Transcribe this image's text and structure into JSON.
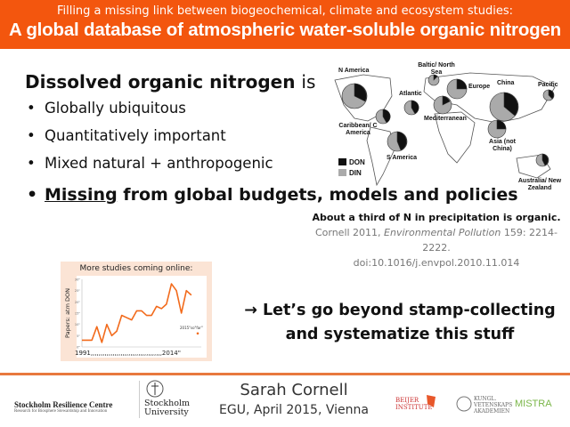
{
  "header": {
    "subtitle": "Filling a missing link between biogeochemical, climate and ecosystem studies:",
    "title": "A global database of atmospheric water-soluble organic nitrogen",
    "color": "#f3560e"
  },
  "main": {
    "heading": "Dissolved organic nitrogen",
    "heading_suffix": "is",
    "bullets": [
      "Globally ubiquitous",
      "Quantitatively important",
      "Mixed natural + anthropogenic"
    ],
    "bullet_emph_underlined": "Missing",
    "bullet_emph_rest": " from global budgets, models and policies"
  },
  "map": {
    "regions": [
      "N America",
      "Baltic/ North Sea",
      "Europe",
      "China",
      "Pacific",
      "Atlantic",
      "Mediterranean",
      "Caribbean/ C America",
      "S America",
      "Asia (not China)",
      "Australia/ New Zealand"
    ],
    "legend": [
      "DON",
      "DIN"
    ]
  },
  "caption": {
    "bold": "About a third of N in precipitation is organic.",
    "citation_author": "Cornell 2011, ",
    "citation_journal": "Environmental Pollution",
    "citation_rest": " 159: 2214-2222.",
    "doi": "doi:10.1016/j.envpol.2010.11.014"
  },
  "chart_data": {
    "type": "line",
    "title": "More studies coming online:",
    "ylabel": "Papers: atm DON",
    "x_start_label": "1991,,,,,,,,,,,,,,,,,,,,,,,,,,,,,,,,,,,,2014\"",
    "annotation": "2015\"so\"far\"",
    "ylim": [
      0,
      30
    ],
    "yticks": [
      0,
      5,
      10,
      15,
      20,
      25,
      30
    ],
    "x": [
      1991,
      1992,
      1993,
      1994,
      1995,
      1996,
      1997,
      1998,
      1999,
      2000,
      2001,
      2002,
      2003,
      2004,
      2005,
      2006,
      2007,
      2008,
      2009,
      2010,
      2011,
      2012,
      2013,
      2014
    ],
    "values": [
      3,
      3,
      3,
      9,
      2,
      10,
      5,
      7,
      14,
      13,
      12,
      16,
      16,
      14,
      14,
      18,
      17,
      19,
      28,
      25,
      15,
      25,
      23,
      null
    ],
    "extra_point": {
      "x": 2015,
      "y": 6
    },
    "color": "#f26a1b"
  },
  "callout": {
    "line1": "→ Let’s go beyond stamp-collecting",
    "line2": "and systematize this stuff"
  },
  "footer": {
    "src_name": "Stockholm Resilience Centre",
    "src_tagline": "Research for Biosphere Stewardship and Innovation",
    "su_name1": "Stockholm",
    "su_name2": "University",
    "author": "Sarah Cornell",
    "event": "EGU, April 2015, Vienna",
    "partner1": "BEIJER INSTITUTE",
    "partner2": "KUNGL. VETENSKAPS AKADEMIEN",
    "partner3": "MISTRA"
  }
}
